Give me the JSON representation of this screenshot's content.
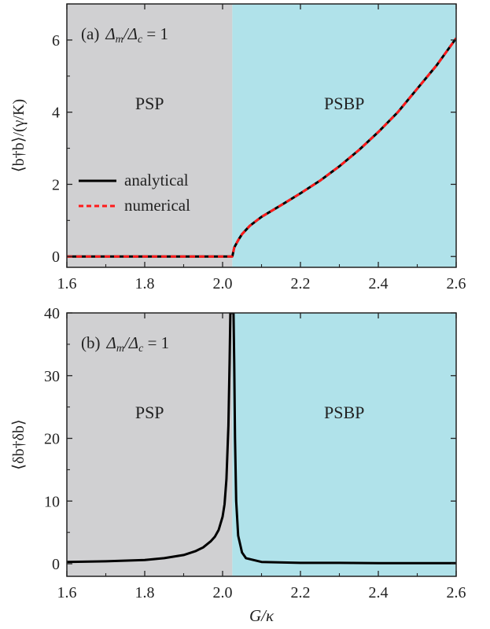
{
  "chart_data": [
    {
      "type": "line",
      "panel_label": "(a)",
      "annotation": "Δm/Δc = 1",
      "annotation_prefix": "Δ",
      "annotation_sub1": "m",
      "annotation_mid": "/Δ",
      "annotation_sub2": "c",
      "annotation_suffix": " = 1",
      "ylabel": "⟨b†b⟩/(γ/K)",
      "xlabel": "",
      "xlim": [
        1.6,
        2.6
      ],
      "ylim": [
        -0.3,
        7.0
      ],
      "xticks": [
        "1.6",
        "1.8",
        "2.0",
        "2.2",
        "2.4",
        "2.6"
      ],
      "xtick_values": [
        1.6,
        1.8,
        2.0,
        2.2,
        2.4,
        2.6
      ],
      "yticks": [
        "0",
        "2",
        "4",
        "6"
      ],
      "ytick_values": [
        0,
        2,
        4,
        6
      ],
      "regions": [
        {
          "label": "PSP",
          "from": 1.6,
          "to": 2.025,
          "color": "#d0d0d2"
        },
        {
          "label": "PSBP",
          "from": 2.025,
          "to": 2.6,
          "color": "#b0e2ea"
        }
      ],
      "legend": {
        "position": "center-left",
        "entries": [
          "analytical",
          "numerical"
        ]
      },
      "series": [
        {
          "name": "analytical",
          "color": "#000000",
          "style": "solid",
          "x": [
            1.6,
            1.8,
            2.0,
            2.025,
            2.03,
            2.04,
            2.05,
            2.07,
            2.1,
            2.15,
            2.2,
            2.25,
            2.3,
            2.35,
            2.4,
            2.45,
            2.5,
            2.55,
            2.6
          ],
          "y": [
            0,
            0,
            0,
            0,
            0.25,
            0.45,
            0.62,
            0.85,
            1.1,
            1.42,
            1.75,
            2.1,
            2.5,
            2.95,
            3.45,
            4.0,
            4.65,
            5.3,
            6.05
          ]
        },
        {
          "name": "numerical",
          "color": "#ff1a1a",
          "style": "dashed",
          "x": [
            1.6,
            1.8,
            2.0,
            2.025,
            2.03,
            2.04,
            2.05,
            2.07,
            2.1,
            2.15,
            2.2,
            2.25,
            2.3,
            2.35,
            2.4,
            2.45,
            2.5,
            2.55,
            2.6
          ],
          "y": [
            0,
            0,
            0,
            0,
            0.25,
            0.45,
            0.62,
            0.85,
            1.1,
            1.42,
            1.75,
            2.1,
            2.5,
            2.95,
            3.45,
            4.0,
            4.65,
            5.3,
            6.05
          ]
        }
      ]
    },
    {
      "type": "line",
      "panel_label": "(b)",
      "annotation": "Δm/Δc = 1",
      "annotation_prefix": "Δ",
      "annotation_sub1": "m",
      "annotation_mid": "/Δ",
      "annotation_sub2": "c",
      "annotation_suffix": " = 1",
      "ylabel": "⟨δb†δb⟩",
      "xlabel": "G/κ",
      "xlim": [
        1.6,
        2.6
      ],
      "ylim": [
        -2,
        40
      ],
      "xticks": [
        "1.6",
        "1.8",
        "2.0",
        "2.2",
        "2.4",
        "2.6"
      ],
      "xtick_values": [
        1.6,
        1.8,
        2.0,
        2.2,
        2.4,
        2.6
      ],
      "yticks": [
        "0",
        "10",
        "20",
        "30",
        "40"
      ],
      "ytick_values": [
        0,
        10,
        20,
        30,
        40
      ],
      "regions": [
        {
          "label": "PSP",
          "from": 1.6,
          "to": 2.025,
          "color": "#d0d0d2"
        },
        {
          "label": "PSBP",
          "from": 2.025,
          "to": 2.6,
          "color": "#b0e2ea"
        }
      ],
      "series": [
        {
          "name": "",
          "color": "#000000",
          "style": "solid",
          "x": [
            1.6,
            1.7,
            1.8,
            1.85,
            1.9,
            1.93,
            1.95,
            1.97,
            1.98,
            1.99,
            2.0,
            2.005,
            2.01,
            2.015,
            2.018,
            2.02,
            2.022,
            2.025,
            2.028,
            2.03,
            2.032,
            2.035,
            2.04,
            2.05,
            2.06,
            2.1,
            2.2,
            2.3,
            2.4,
            2.5,
            2.6
          ],
          "y": [
            0.3,
            0.4,
            0.6,
            0.9,
            1.4,
            2.0,
            2.6,
            3.6,
            4.3,
            5.4,
            7.5,
            9.5,
            13.5,
            22,
            32,
            40,
            40,
            40,
            40,
            32,
            20,
            10,
            4.5,
            1.8,
            0.9,
            0.3,
            0.15,
            0.15,
            0.1,
            0.1,
            0.1
          ]
        }
      ]
    }
  ]
}
